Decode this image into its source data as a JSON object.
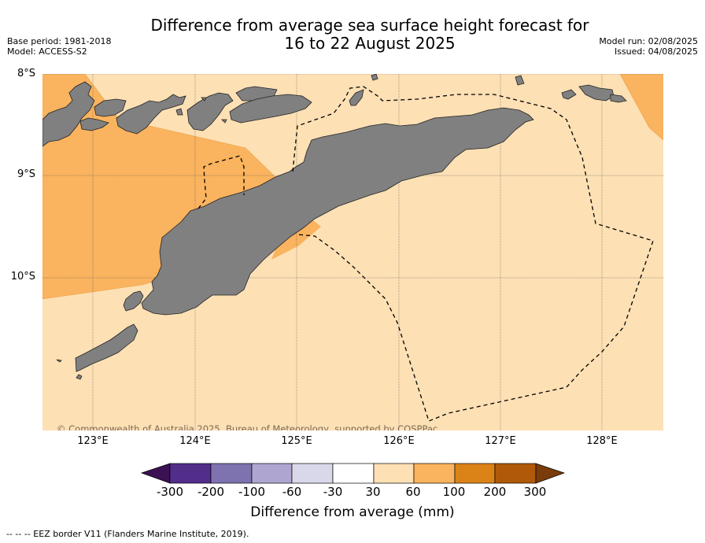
{
  "header": {
    "title_line1": "Difference from average sea surface height forecast for",
    "title_line2": "16 to 22 August 2025",
    "base_period": "Base period: 1981-2018",
    "model": "Model: ACCESS-S2",
    "model_run": "Model run: 02/08/2025",
    "issued": "Issued: 04/08/2025"
  },
  "map": {
    "latitude_labels": [
      "8°S",
      "9°S",
      "10°S"
    ],
    "longitude_labels": [
      "123°E",
      "124°E",
      "125°E",
      "126°E",
      "127°E",
      "128°E"
    ],
    "copyright": "© Commonwealth of Australia 2025, Bureau of Meteorology, supported by COSPPac",
    "colors": {
      "land": "#808080",
      "anomaly_30_60": "#fde0b4",
      "anomaly_60_100": "#fab35e",
      "gridline": "#555555"
    }
  },
  "colorbar": {
    "ticks": [
      "-300",
      "-200",
      "-100",
      "-60",
      "-30",
      "30",
      "60",
      "100",
      "200",
      "300"
    ],
    "colors": [
      "#3b1154",
      "#522d8a",
      "#7e72af",
      "#aea6d0",
      "#d8d8ea",
      "#ffffff",
      "#fde0b4",
      "#fab35e",
      "#dc8318",
      "#b05a09",
      "#7a3c0a"
    ],
    "title": "Difference from average (mm)"
  },
  "footer": {
    "legend_text": "-- -- -- EEZ border V11 (Flanders Marine Institute, 2019)."
  }
}
